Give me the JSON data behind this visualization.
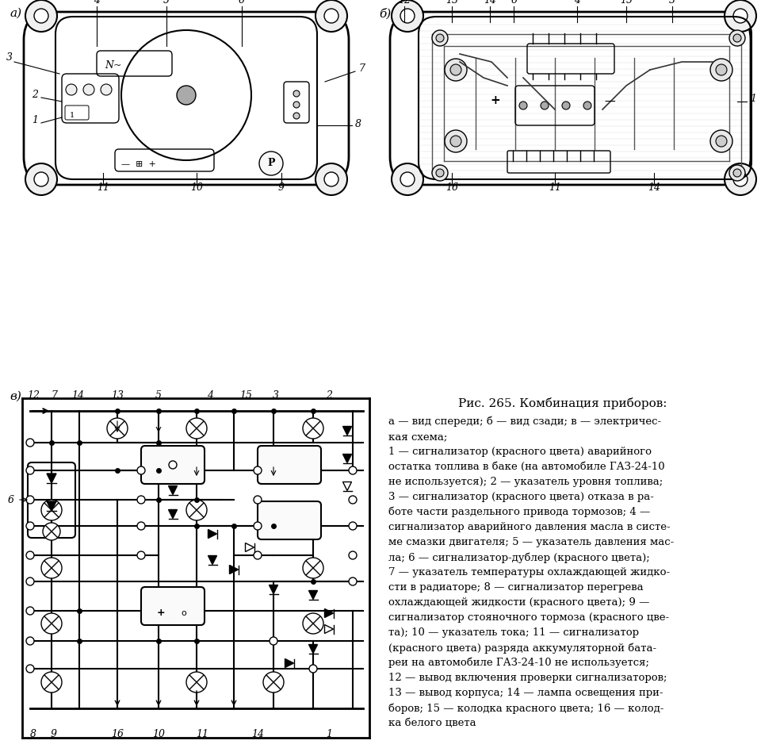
{
  "title": "Рис. 265. Комбинация приборов:",
  "description_lines": [
    "а — вид спереди; б — вид сзади; в — электричес-",
    "кая схема;",
    "1 — сигнализатор (красного цвета) аварийного",
    "остатка топлива в баке (на автомобиле ГАЗ-24-10",
    "не используется); 2 — указатель уровня топлива;",
    "3 — сигнализатор (красного цвета) отказа в ра-",
    "боте части раздельного привода тормозов; 4 —",
    "сигнализатор аварийного давления масла в систе-",
    "ме смазки двигателя; 5 — указатель давления мас-",
    "ла; 6 — сигнализатор-дублер (красного цвета);",
    "7 — указатель температуры охлаждающей жидко-",
    "сти в радиаторе; 8 — сигнализатор перегрева",
    "охлаждающей жидкости (красного цвета); 9 —",
    "сигнализатор стояночного тормоза (красного цве-",
    "та); 10 — указатель тока; 11 — сигнализатор",
    "(красного цвета) разряда аккумуляторной бата-",
    "реи на автомобиле ГАЗ-24-10 не используется;",
    "12 — вывод включения проверки сигнализаторов;",
    "13 — вывод корпуса; 14 — лампа освещения при-",
    "боров; 15 — колодка красного цвета; 16 — колод-",
    "ка белого цвета"
  ],
  "bg_color": "#ffffff",
  "text_color": "#000000",
  "fig_width": 9.6,
  "fig_height": 9.48
}
